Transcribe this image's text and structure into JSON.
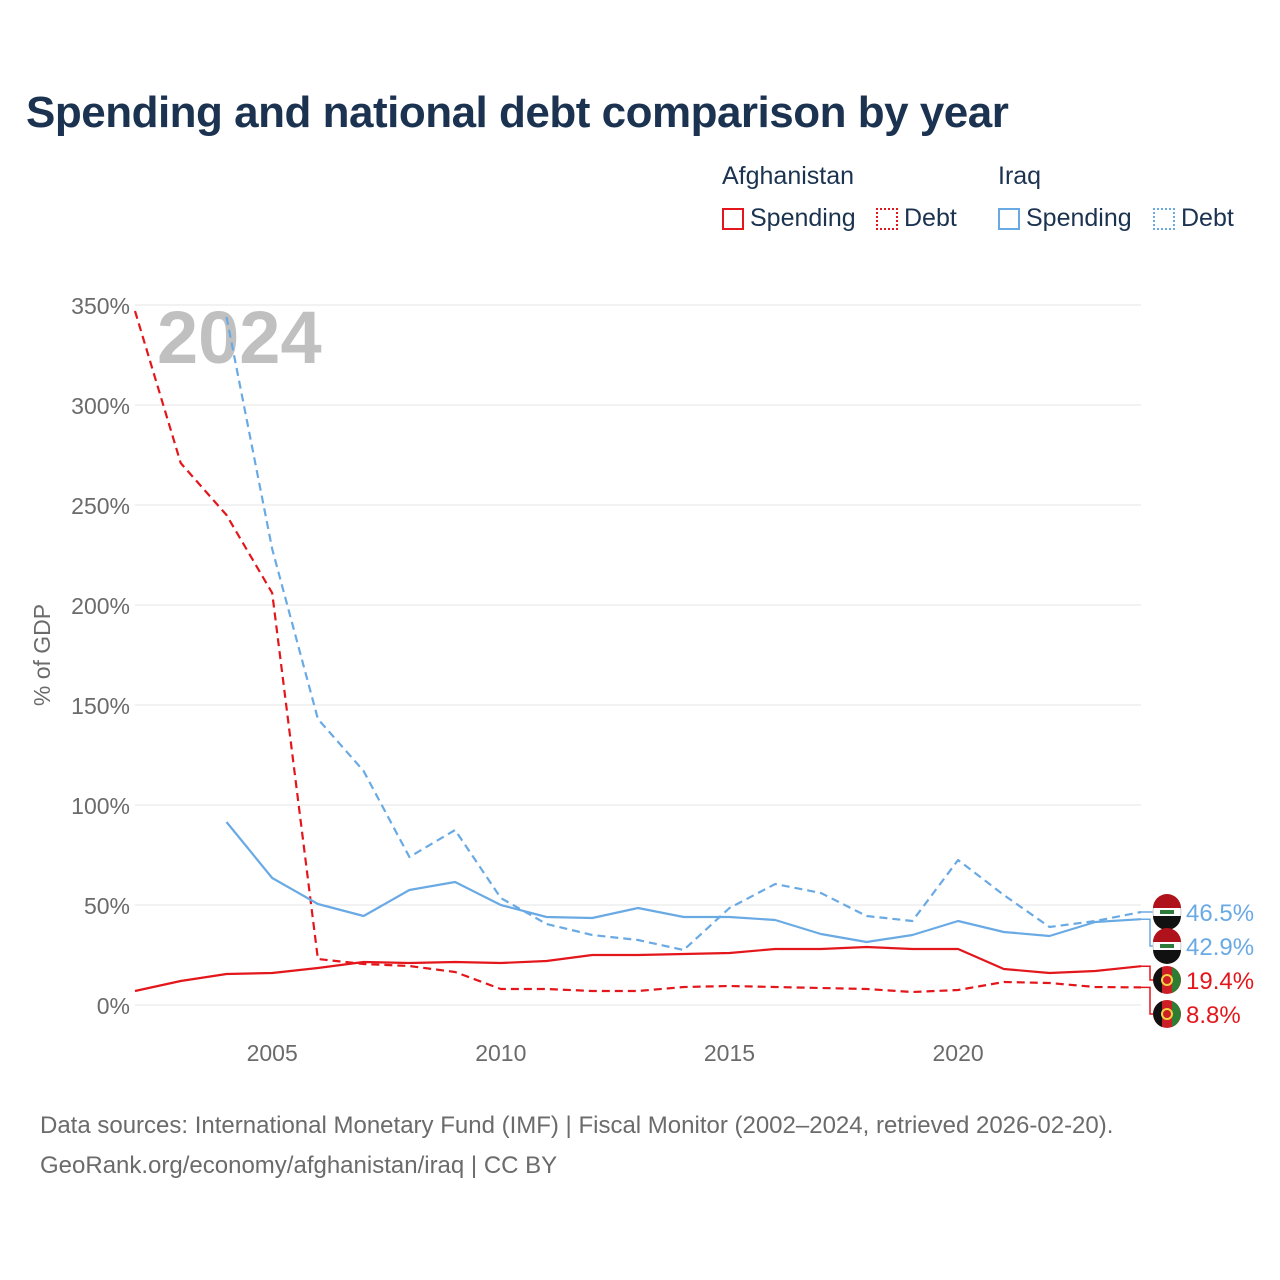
{
  "chart_data": {
    "type": "line",
    "title": "Spending and national debt comparison by year",
    "year_label": "2024",
    "ylabel": "% of GDP",
    "xlim": [
      2002,
      2024
    ],
    "ylim": [
      0,
      350
    ],
    "y_ticks": [
      "0%",
      "50%",
      "100%",
      "150%",
      "200%",
      "250%",
      "300%",
      "350%"
    ],
    "y_tick_values": [
      0,
      50,
      100,
      150,
      200,
      250,
      300,
      350
    ],
    "x_ticks": [
      "2005",
      "2010",
      "2015",
      "2020"
    ],
    "x_tick_values": [
      2005,
      2010,
      2015,
      2020
    ],
    "legend_groups": [
      {
        "title": "Afghanistan",
        "entries": [
          "Spending",
          "Debt"
        ]
      },
      {
        "title": "Iraq",
        "entries": [
          "Spending",
          "Debt"
        ]
      }
    ],
    "series": [
      {
        "country": "Afghanistan",
        "name": "Spending",
        "color": "#e3161b",
        "dash": false,
        "x": [
          2002,
          2003,
          2004,
          2005,
          2006,
          2007,
          2008,
          2009,
          2010,
          2011,
          2012,
          2013,
          2014,
          2015,
          2016,
          2017,
          2018,
          2019,
          2020,
          2021,
          2022,
          2023,
          2024
        ],
        "values": [
          7.0,
          12.0,
          15.5,
          16.0,
          18.5,
          21.5,
          21.0,
          21.5,
          21.0,
          22.0,
          25.0,
          25.0,
          25.5,
          26.0,
          28.0,
          28.0,
          29.0,
          28.0,
          28.0,
          18.0,
          16.0,
          17.0,
          19.4
        ],
        "end_label": "19.4%"
      },
      {
        "country": "Afghanistan",
        "name": "Debt",
        "color": "#e3161b",
        "dash": true,
        "x": [
          2002,
          2003,
          2004,
          2005,
          2006,
          2007,
          2008,
          2009,
          2010,
          2011,
          2012,
          2013,
          2014,
          2015,
          2016,
          2017,
          2018,
          2019,
          2020,
          2021,
          2022,
          2023,
          2024
        ],
        "values": [
          347,
          271,
          245,
          206,
          23.0,
          20.5,
          19.5,
          16.5,
          8.0,
          8.0,
          7.0,
          7.0,
          9.0,
          9.5,
          9.0,
          8.5,
          8.0,
          6.5,
          7.5,
          11.5,
          11.0,
          9.0,
          8.8
        ],
        "end_label": "8.8%"
      },
      {
        "country": "Iraq",
        "name": "Spending",
        "color": "#6aaae4",
        "dash": false,
        "x": [
          2004,
          2005,
          2006,
          2007,
          2008,
          2009,
          2010,
          2011,
          2012,
          2013,
          2014,
          2015,
          2016,
          2017,
          2018,
          2019,
          2020,
          2021,
          2022,
          2023,
          2024
        ],
        "values": [
          91.5,
          63.5,
          50.5,
          44.5,
          57.5,
          61.5,
          50.0,
          44.0,
          43.5,
          48.5,
          44.0,
          44.0,
          42.5,
          35.5,
          31.5,
          35.0,
          42.0,
          36.5,
          34.5,
          41.5,
          42.9
        ],
        "end_label": "42.9%"
      },
      {
        "country": "Iraq",
        "name": "Debt",
        "color": "#6aaae4",
        "dash": true,
        "x": [
          2004,
          2005,
          2006,
          2007,
          2008,
          2009,
          2010,
          2011,
          2012,
          2013,
          2014,
          2015,
          2016,
          2017,
          2018,
          2019,
          2020,
          2021,
          2022,
          2023,
          2024
        ],
        "values": [
          344,
          228,
          143,
          117,
          74.0,
          87.5,
          53.5,
          40.5,
          35.0,
          32.5,
          27.5,
          48.5,
          60.5,
          56.0,
          44.5,
          42.0,
          72.5,
          55.0,
          39.0,
          42.0,
          46.5
        ],
        "end_label": "46.5%"
      }
    ]
  },
  "footer": {
    "line1": "Data sources: International Monetary Fund (IMF) | Fiscal Monitor (2002–2024, retrieved 2026-02-20).",
    "line2": "GeoRank.org/economy/afghanistan/iraq | CC BY"
  }
}
